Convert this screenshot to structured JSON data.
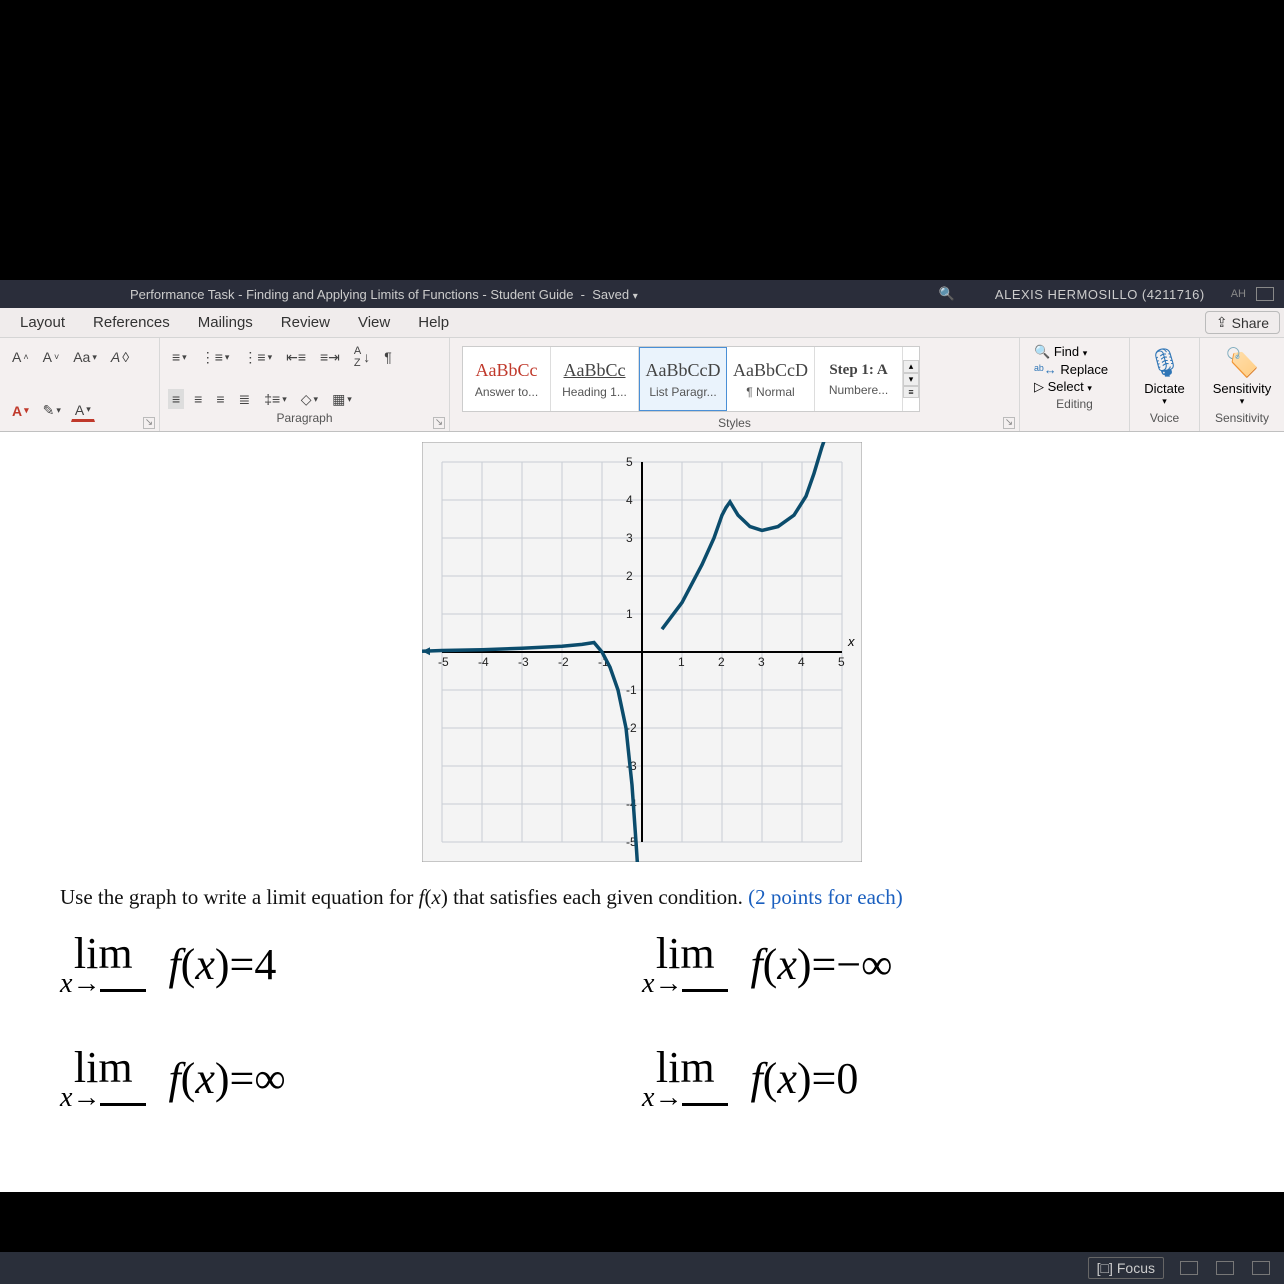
{
  "titlebar": {
    "doc_title": "Performance Task - Finding and Applying Limits of Functions - Student Guide",
    "saved": "Saved",
    "user": "ALEXIS HERMOSILLO (4211716)",
    "initials": "AH"
  },
  "tabs": {
    "items": [
      "Layout",
      "References",
      "Mailings",
      "Review",
      "View",
      "Help"
    ],
    "share": "Share"
  },
  "ribbon": {
    "font": {
      "grow": "A˄",
      "shrink": "A˅",
      "case": "Aa",
      "clear": "A◊",
      "bold": "A",
      "hilite": "✎",
      "color": "A"
    },
    "paragraph": {
      "label": "Paragraph",
      "sort": "A↓Z",
      "pilcrow": "¶"
    },
    "styles": {
      "label": "Styles",
      "items": [
        {
          "preview": "AaBbCc",
          "name": "Answer to...",
          "colored": true
        },
        {
          "preview": "AaBbCc",
          "name": "Heading 1...",
          "colored": false,
          "underline": true
        },
        {
          "preview": "AaBbCcD",
          "name": "List Paragr...",
          "selected": true
        },
        {
          "preview": "AaBbCcD",
          "name": "¶ Normal"
        },
        {
          "preview": "Step 1: A",
          "name": "Numbere...",
          "bold": true
        }
      ]
    },
    "editing": {
      "label": "Editing",
      "find": "Find",
      "replace": "Replace",
      "select": "Select"
    },
    "dictate": {
      "label": "Voice",
      "btn": "Dictate"
    },
    "sens": {
      "label": "Sensitivity",
      "btn": "Sensitivity"
    }
  },
  "graph": {
    "xlim": [
      -5,
      5
    ],
    "ylim": [
      -5,
      5
    ],
    "xticks": [
      -5,
      -4,
      -3,
      -2,
      -1,
      1,
      2,
      3,
      4,
      5
    ],
    "yticks": [
      -5,
      -4,
      -3,
      -2,
      -1,
      1,
      2,
      3,
      4,
      5
    ],
    "axis_label": "x",
    "grid_color": "#c8cdd4",
    "curve_color": "#0b4c6c",
    "bg": "#f4f4f4",
    "left_branch": [
      [
        -5.5,
        0.02
      ],
      [
        -5,
        0.04
      ],
      [
        -4,
        0.06
      ],
      [
        -3,
        0.1
      ],
      [
        -2,
        0.15
      ],
      [
        -1.5,
        0.2
      ],
      [
        -1.2,
        0.25
      ],
      [
        -1.0,
        0.0
      ],
      [
        -0.8,
        -0.4
      ],
      [
        -0.6,
        -1.0
      ],
      [
        -0.4,
        -2.0
      ],
      [
        -0.25,
        -3.5
      ],
      [
        -0.15,
        -5.0
      ],
      [
        -0.1,
        -5.8
      ]
    ],
    "right_branch": [
      [
        0.5,
        0.6
      ],
      [
        1.0,
        1.3
      ],
      [
        1.5,
        2.3
      ],
      [
        1.8,
        3.0
      ],
      [
        2.0,
        3.6
      ],
      [
        2.1,
        3.8
      ],
      [
        2.2,
        3.95
      ],
      [
        2.4,
        3.6
      ],
      [
        2.7,
        3.3
      ],
      [
        3.0,
        3.2
      ],
      [
        3.4,
        3.3
      ],
      [
        3.8,
        3.6
      ],
      [
        4.1,
        4.1
      ],
      [
        4.3,
        4.7
      ],
      [
        4.5,
        5.4
      ],
      [
        4.7,
        6.0
      ]
    ]
  },
  "prompt": {
    "text": "Use the graph to write a limit equation for f(x) that satisfies each given condition.",
    "note": "(2 points for each)"
  },
  "limits": [
    {
      "rhs": "=4"
    },
    {
      "rhs": "=−∞"
    },
    {
      "rhs": "=∞"
    },
    {
      "rhs": "=0"
    }
  ],
  "status": {
    "focus": "Focus"
  }
}
